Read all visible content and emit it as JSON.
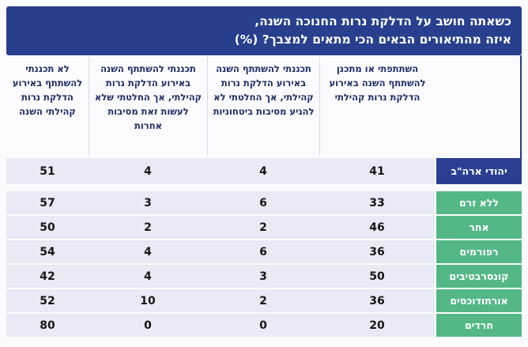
{
  "title": {
    "line1": "כשאתה חושב על הדלקת נרות החנוכה השנה,",
    "line2": "איזה מהתיאורים הבאים הכי מתאים למצבך? (%)"
  },
  "chart_data": {
    "type": "table",
    "title": "כשאתה חושב על הדלקת נרות החנוכה השנה, איזה מהתיאורים הבאים הכי מתאים למצבך? (%)",
    "direction": "rtl",
    "unit": "%",
    "columns": [
      "השתתפתי או מתכנן להשתתף השנה באירוע הדלקת נרות קהילתי",
      "תכננתי להשתתף השנה באירוע הדלקת נרות קהילתי, אך החלטתי לא להגיע מסיבות ביטחוניות",
      "תכננתי להשתתף השנה באירוע הדלקת נרות קהילתי, אך החלטתי שלא לעשות זאת מסיבות אחרות",
      "לא תכננתי להשתתף באירוע הדלקת נרות קהילתי השנה"
    ],
    "rows": [
      {
        "group": "יהודי ארה\"ב",
        "values": [
          41,
          4,
          4,
          51
        ]
      },
      {
        "group": "ללא זרם",
        "values": [
          33,
          6,
          3,
          57
        ]
      },
      {
        "group": "אחר",
        "values": [
          46,
          2,
          2,
          50
        ]
      },
      {
        "group": "רפורמים",
        "values": [
          36,
          6,
          4,
          54
        ]
      },
      {
        "group": "קונסרבטיבים",
        "values": [
          50,
          3,
          4,
          42
        ]
      },
      {
        "group": "אורתודוכסים",
        "values": [
          36,
          2,
          10,
          52
        ]
      },
      {
        "group": "חרדים",
        "values": [
          20,
          0,
          0,
          80
        ]
      }
    ]
  },
  "colors": {
    "navy": "#283f8e",
    "green": "#53b886",
    "row_background": "#e9eaf5",
    "header_text": "#1e2c66",
    "value_text": "#15151e",
    "page_background": "#fbfbfd",
    "separator": "#d8d9e6"
  }
}
